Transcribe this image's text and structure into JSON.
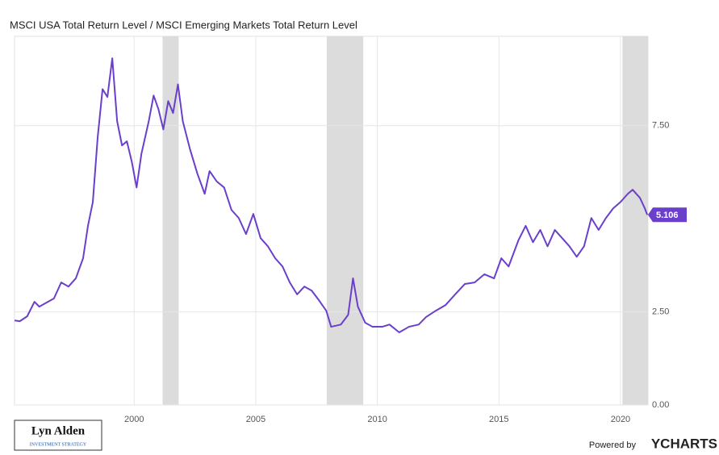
{
  "chart_data": {
    "type": "line",
    "title": "MSCI USA Total Return Level / MSCI Emerging Markets Total Return Level",
    "x": [
      1995.08,
      1995.3,
      1995.6,
      1995.9,
      1996.1,
      1996.4,
      1996.7,
      1997.0,
      1997.3,
      1997.6,
      1997.9,
      1998.1,
      1998.3,
      1998.5,
      1998.7,
      1998.9,
      1999.1,
      1999.3,
      1999.5,
      1999.7,
      1999.9,
      2000.1,
      2000.3,
      2000.6,
      2000.8,
      2001.0,
      2001.2,
      2001.4,
      2001.6,
      2001.8,
      2002.0,
      2002.3,
      2002.6,
      2002.9,
      2003.1,
      2003.4,
      2003.7,
      2004.0,
      2004.3,
      2004.6,
      2004.9,
      2005.2,
      2005.5,
      2005.8,
      2006.1,
      2006.4,
      2006.7,
      2007.0,
      2007.3,
      2007.6,
      2007.9,
      2008.1,
      2008.5,
      2008.8,
      2009.0,
      2009.2,
      2009.5,
      2009.8,
      2010.2,
      2010.5,
      2010.9,
      2011.3,
      2011.7,
      2012.0,
      2012.4,
      2012.8,
      2013.2,
      2013.6,
      2014.0,
      2014.4,
      2014.8,
      2015.1,
      2015.4,
      2015.8,
      2016.1,
      2016.4,
      2016.7,
      2017.0,
      2017.3,
      2017.6,
      2017.9,
      2018.2,
      2018.5,
      2018.8,
      2019.1,
      2019.4,
      2019.7,
      2020.0,
      2020.3,
      2020.5,
      2020.8,
      2021.0,
      2021.1
    ],
    "series": [
      {
        "color": "#6a3fcc",
        "values": [
          2.27,
          2.25,
          2.38,
          2.77,
          2.64,
          2.75,
          2.86,
          3.29,
          3.18,
          3.4,
          3.94,
          4.81,
          5.45,
          7.19,
          8.48,
          8.27,
          9.31,
          7.62,
          6.97,
          7.08,
          6.54,
          5.84,
          6.75,
          7.62,
          8.31,
          7.94,
          7.4,
          8.16,
          7.84,
          8.61,
          7.62,
          6.86,
          6.21,
          5.67,
          6.28,
          6.0,
          5.84,
          5.24,
          5.02,
          4.59,
          5.13,
          4.48,
          4.26,
          3.94,
          3.72,
          3.29,
          2.97,
          3.18,
          3.07,
          2.81,
          2.53,
          2.1,
          2.16,
          2.42,
          3.4,
          2.64,
          2.21,
          2.1,
          2.1,
          2.16,
          1.95,
          2.1,
          2.16,
          2.36,
          2.53,
          2.68,
          2.97,
          3.25,
          3.29,
          3.51,
          3.4,
          3.94,
          3.72,
          4.42,
          4.81,
          4.37,
          4.7,
          4.26,
          4.7,
          4.48,
          4.26,
          3.98,
          4.26,
          5.02,
          4.7,
          5.02,
          5.28,
          5.45,
          5.67,
          5.78,
          5.56,
          5.28,
          5.106
        ]
      }
    ],
    "xlim": [
      1995.08,
      2021.13
    ],
    "xticks": [
      2000,
      2005,
      2010,
      2015,
      2020
    ],
    "ylim": [
      0,
      9.9
    ],
    "yticks": [
      {
        "value": 0,
        "label": "0.00"
      },
      {
        "value": 2.5,
        "label": "2.50"
      },
      {
        "value": 7.5,
        "label": "7.50"
      }
    ],
    "grid": true,
    "shaded_regions": [
      [
        2001.17,
        2001.83
      ],
      [
        2007.92,
        2009.42
      ],
      [
        2020.08,
        2021.13
      ]
    ],
    "logo": {
      "name": "Lyn Alden",
      "tagline": "INVESTMENT STRATEGY"
    },
    "credit": {
      "prefix": "Powered by",
      "brand": "YCHARTS"
    }
  }
}
